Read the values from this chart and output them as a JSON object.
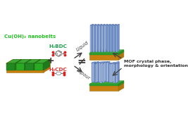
{
  "bg_color": "#ffffff",
  "fig_width": 2.67,
  "fig_height": 1.89,
  "dpi": 100,
  "label_cu": "Cu(OH)₂ nanobelts",
  "label_h2bdc": "H₂BDC",
  "label_h2cdc": "H₂CDC",
  "label_liquid": "Liquid",
  "label_vapour": "Vapour",
  "label_neq": "≠",
  "label_mof": "MOF crystal phase,\nmorphology & orientation",
  "label_plus": "+",
  "color_gold": "#E8A020",
  "color_gold_front": "#C88010",
  "color_gold_side": "#B07510",
  "color_gold_edge": "#A07010",
  "color_green_top": "#3aaa35",
  "color_green_front1": "#228822",
  "color_green_front2": "#2aaa22",
  "color_green_edge": "#1a6010",
  "color_green_layer_top": "#40B040",
  "color_green_layer_front": "#30A030",
  "color_green_layer_edge": "#208020",
  "color_blue_front": "#A8BEE0",
  "color_blue_top": "#90A8D8",
  "color_blue_side": "#7090C8",
  "color_blue_edge": "#4060A0",
  "color_arrow": "#404040",
  "color_h2bdc_label": "#20A050",
  "color_h2cdc_label": "#E03030",
  "color_label_cu": "#20C020",
  "color_mof_label": "#303030",
  "color_atom_red": "#DD2222",
  "color_atom_gray": "#888888",
  "color_atom_dark": "#555555",
  "color_bond": "#606060"
}
